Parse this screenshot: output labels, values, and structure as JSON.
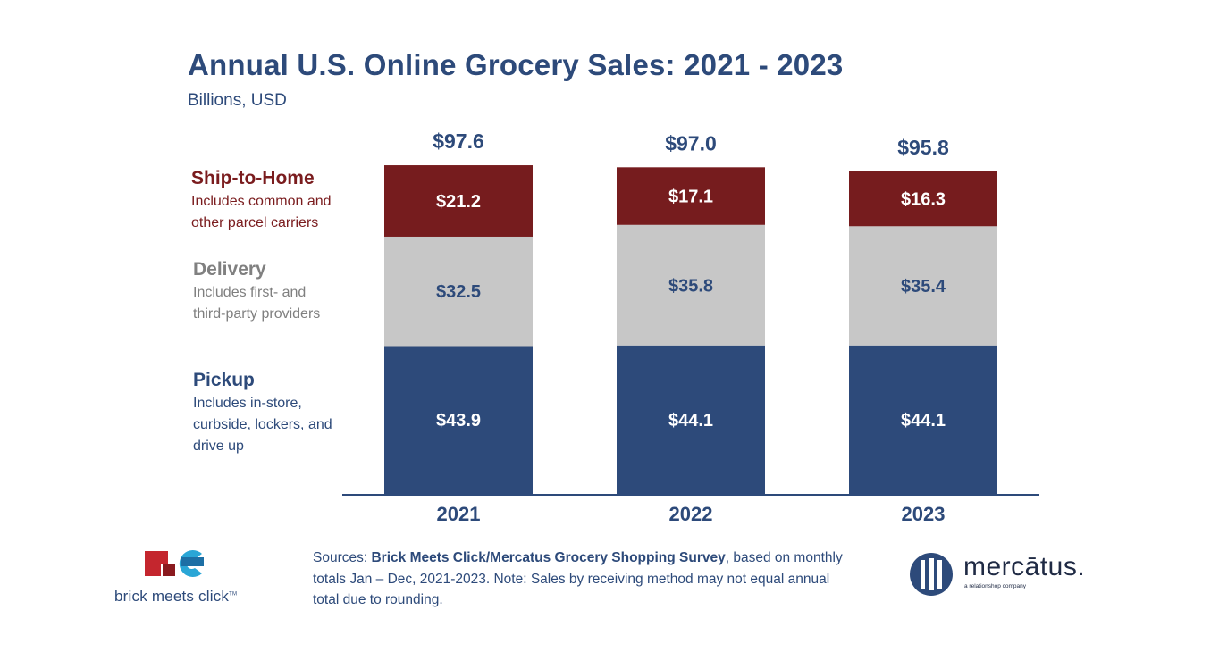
{
  "title": "Annual U.S. Online Grocery Sales: 2021 - 2023",
  "subtitle": "Billions, USD",
  "legend": {
    "ship": {
      "title": "Ship-to-Home",
      "line1": "Includes common and",
      "line2": "other parcel carriers"
    },
    "delivery": {
      "title": "Delivery",
      "line1": "Includes first- and",
      "line2": "third-party providers"
    },
    "pickup": {
      "title": "Pickup",
      "line1": "Includes in-store,",
      "line2": "curbside, lockers, and",
      "line3": "drive up"
    }
  },
  "colors": {
    "pickup": "#2d4a7a",
    "delivery": "#c7c7c7",
    "ship": "#761c1e",
    "navy": "#2d4a7a"
  },
  "chart_data": {
    "type": "bar",
    "stacked": true,
    "title": "Annual U.S. Online Grocery Sales: 2021 - 2023",
    "ylabel": "Billions, USD",
    "categories": [
      "2021",
      "2022",
      "2023"
    ],
    "series": [
      {
        "name": "Pickup",
        "values": [
          43.9,
          44.1,
          44.1
        ],
        "labels": [
          "$43.9",
          "$44.1",
          "$44.1"
        ]
      },
      {
        "name": "Delivery",
        "values": [
          32.5,
          35.8,
          35.4
        ],
        "labels": [
          "$32.5",
          "$35.8",
          "$35.4"
        ]
      },
      {
        "name": "Ship-to-Home",
        "values": [
          21.2,
          17.1,
          16.3
        ],
        "labels": [
          "$21.2",
          "$17.1",
          "$16.3"
        ]
      }
    ],
    "totals": [
      97.6,
      97.0,
      95.8
    ],
    "total_labels": [
      "$97.6",
      "$97.0",
      "$95.8"
    ]
  },
  "sources": {
    "prefix": "Sources: ",
    "bold": "Brick Meets Click/Mercatus Grocery Shopping Survey",
    "rest": ", based on monthly totals Jan – Dec, 2021-2023.  Note: Sales by receiving method may not equal annual total due to rounding."
  },
  "logos": {
    "bmc": {
      "text": "brick meets click",
      "tm": "TM"
    },
    "mercatus": {
      "text": "mercātus.",
      "tagline": "a relationshop company"
    }
  }
}
